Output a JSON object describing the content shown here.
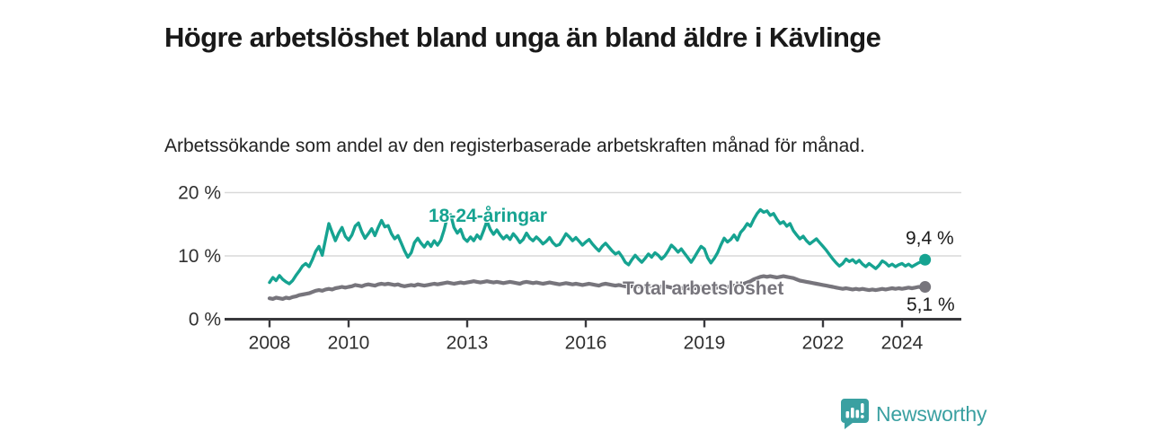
{
  "header": {
    "title": "Högre arbetslöshet bland unga än bland äldre i Kävlinge",
    "subtitle": "Arbetssökande som andel av den registerbaserade arbetskraften månad för månad."
  },
  "chart_data": {
    "type": "line",
    "title": "Högre arbetslöshet bland unga än bland äldre i Kävlinge",
    "unit": "%",
    "x_start_year": 2008,
    "x_step_months": 1,
    "ylim": [
      0,
      20
    ],
    "grid": "horizontal",
    "legend": "inline-labels",
    "yticks": [
      {
        "value": 0,
        "label": "0 %"
      },
      {
        "value": 10,
        "label": "10 %"
      },
      {
        "value": 20,
        "label": "20 %"
      }
    ],
    "xticks": [
      {
        "year": 2008,
        "label": "2008"
      },
      {
        "year": 2010,
        "label": "2010"
      },
      {
        "year": 2013,
        "label": "2013"
      },
      {
        "year": 2016,
        "label": "2016"
      },
      {
        "year": 2019,
        "label": "2019"
      },
      {
        "year": 2022,
        "label": "2022"
      },
      {
        "year": 2024,
        "label": "2024"
      }
    ],
    "series": [
      {
        "name": "18-24-åringar",
        "color": "#16a391",
        "end_label": "9,4 %",
        "values": [
          5.8,
          6.6,
          6.1,
          6.9,
          6.3,
          5.9,
          5.6,
          6.1,
          6.9,
          7.6,
          8.4,
          8.8,
          8.3,
          9.4,
          10.7,
          11.5,
          10.1,
          12.6,
          15.1,
          13.7,
          12.4,
          13.6,
          14.5,
          13.1,
          12.5,
          13.3,
          14.7,
          15.2,
          13.8,
          12.8,
          13.5,
          14.3,
          13.2,
          14.5,
          15.6,
          14.6,
          14.8,
          13.5,
          12.7,
          13.2,
          12.0,
          10.8,
          9.8,
          10.5,
          12.1,
          12.8,
          12.0,
          11.4,
          12.2,
          11.5,
          12.4,
          11.7,
          12.5,
          14.1,
          16.2,
          16.5,
          14.5,
          13.6,
          14.2,
          12.8,
          12.3,
          13.0,
          12.4,
          13.3,
          12.7,
          14.0,
          15.5,
          14.2,
          13.4,
          14.1,
          13.3,
          12.7,
          13.2,
          12.6,
          13.5,
          12.9,
          12.1,
          12.6,
          13.6,
          12.8,
          12.4,
          13.0,
          12.5,
          11.9,
          12.3,
          12.9,
          12.1,
          11.6,
          11.8,
          12.6,
          13.5,
          13.0,
          12.4,
          12.9,
          12.3,
          11.7,
          12.2,
          12.6,
          11.9,
          11.3,
          10.8,
          11.5,
          12.0,
          11.4,
          10.8,
          10.3,
          10.6,
          9.9,
          9.0,
          8.6,
          9.4,
          10.1,
          9.5,
          9.0,
          9.6,
          10.3,
          9.8,
          10.5,
          10.1,
          9.5,
          10.0,
          10.8,
          11.7,
          11.2,
          10.6,
          11.1,
          10.4,
          9.7,
          9.0,
          9.8,
          10.7,
          11.5,
          11.1,
          9.7,
          8.9,
          9.6,
          10.5,
          11.7,
          12.8,
          12.2,
          12.6,
          13.3,
          12.5,
          13.7,
          14.3,
          15.1,
          14.7,
          15.8,
          16.7,
          17.3,
          16.9,
          17.1,
          16.4,
          16.7,
          15.8,
          15.1,
          15.4,
          14.7,
          15.1,
          14.0,
          13.3,
          12.7,
          13.1,
          12.4,
          11.9,
          12.3,
          12.7,
          12.1,
          11.5,
          10.9,
          10.2,
          9.5,
          8.9,
          8.4,
          8.8,
          9.5,
          9.1,
          9.4,
          8.9,
          9.3,
          8.7,
          8.3,
          8.8,
          8.4,
          8.0,
          8.5,
          9.2,
          8.9,
          8.4,
          8.7,
          8.3,
          8.6,
          8.8,
          8.4,
          8.7,
          8.3,
          8.6,
          8.9,
          9.1,
          9.4
        ]
      },
      {
        "name": "Total arbetslöshet",
        "color": "#77757c",
        "end_label": "5,1 %",
        "values": [
          3.3,
          3.2,
          3.4,
          3.3,
          3.2,
          3.4,
          3.3,
          3.5,
          3.6,
          3.8,
          3.9,
          4.0,
          4.1,
          4.3,
          4.5,
          4.6,
          4.5,
          4.7,
          4.8,
          4.7,
          4.9,
          5.0,
          5.1,
          5.0,
          5.1,
          5.2,
          5.4,
          5.3,
          5.2,
          5.4,
          5.5,
          5.4,
          5.3,
          5.5,
          5.6,
          5.5,
          5.6,
          5.5,
          5.4,
          5.5,
          5.3,
          5.2,
          5.3,
          5.4,
          5.3,
          5.5,
          5.4,
          5.3,
          5.4,
          5.5,
          5.6,
          5.5,
          5.6,
          5.7,
          5.8,
          5.7,
          5.6,
          5.7,
          5.8,
          5.7,
          5.8,
          5.9,
          6.0,
          5.9,
          5.8,
          5.9,
          6.0,
          5.9,
          5.8,
          5.9,
          5.8,
          5.7,
          5.8,
          5.9,
          5.8,
          5.7,
          5.6,
          5.8,
          5.9,
          5.8,
          5.7,
          5.8,
          5.7,
          5.6,
          5.7,
          5.8,
          5.7,
          5.6,
          5.5,
          5.6,
          5.7,
          5.6,
          5.5,
          5.6,
          5.5,
          5.4,
          5.5,
          5.6,
          5.5,
          5.4,
          5.3,
          5.5,
          5.6,
          5.5,
          5.4,
          5.3,
          5.4,
          5.3,
          5.2,
          5.1,
          5.2,
          5.3,
          5.2,
          5.1,
          5.2,
          5.3,
          5.2,
          5.3,
          5.2,
          5.1,
          5.2,
          5.1,
          5.0,
          5.1,
          5.0,
          4.9,
          5.0,
          4.9,
          4.8,
          4.9,
          5.0,
          5.1,
          5.0,
          4.9,
          4.8,
          4.9,
          5.0,
          5.1,
          5.2,
          5.1,
          5.2,
          5.3,
          5.2,
          5.4,
          5.6,
          5.8,
          6.0,
          6.3,
          6.5,
          6.7,
          6.8,
          6.7,
          6.8,
          6.7,
          6.6,
          6.7,
          6.8,
          6.7,
          6.6,
          6.5,
          6.3,
          6.1,
          6.0,
          5.9,
          5.8,
          5.7,
          5.6,
          5.5,
          5.4,
          5.3,
          5.2,
          5.1,
          5.0,
          4.9,
          4.8,
          4.9,
          4.8,
          4.7,
          4.8,
          4.7,
          4.8,
          4.7,
          4.6,
          4.7,
          4.6,
          4.7,
          4.8,
          4.7,
          4.8,
          4.9,
          4.8,
          4.9,
          4.8,
          4.9,
          5.0,
          4.9,
          5.0,
          5.1,
          5.0,
          5.1
        ]
      }
    ]
  },
  "annotations": {
    "youth_series_label": "18-24-åringar",
    "total_series_label": "Total arbetslöshet",
    "youth_end_value": "9,4 %",
    "total_end_value": "5,1 %"
  },
  "footer": {
    "brand": "Newsworthy"
  },
  "colors": {
    "youth_line": "#16a391",
    "total_line": "#77757c",
    "axis": "#39393d",
    "gridline": "#d9d9d9",
    "tick_label": "#303030",
    "brand_teal": "#3aa0a1",
    "text": "#191919"
  }
}
